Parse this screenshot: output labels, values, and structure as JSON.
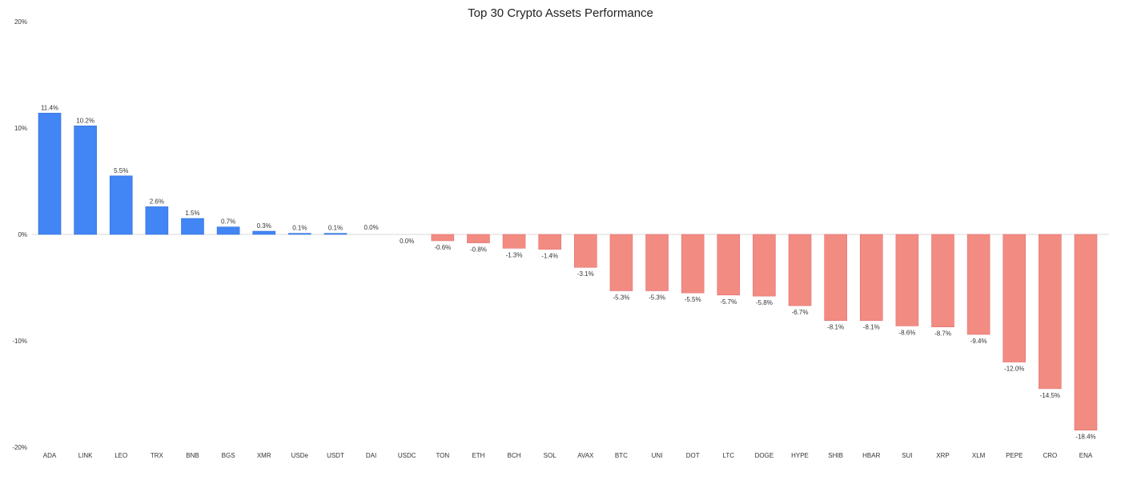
{
  "chart_data": {
    "type": "bar",
    "title": "Top 30 Crypto Assets Performance",
    "xlabel": "",
    "ylabel": "",
    "ylim": [
      -20,
      20
    ],
    "yticks": [
      20,
      10,
      0,
      -10,
      -20
    ],
    "ytick_labels": [
      "20%",
      "10%",
      "0%",
      "-10%",
      "-20%"
    ],
    "grid": false,
    "legend": "none",
    "colors": {
      "positive": "#4285f4",
      "negative": "#f28b82",
      "zero_line": "#d9d9d9"
    },
    "categories": [
      "ADA",
      "LINK",
      "LEO",
      "TRX",
      "BNB",
      "BGS",
      "XMR",
      "USDe",
      "USDT",
      "DAI",
      "USDC",
      "TON",
      "ETH",
      "BCH",
      "SOL",
      "AVAX",
      "BTC",
      "UNI",
      "DOT",
      "LTC",
      "DOGE",
      "HYPE",
      "SHIB",
      "HBAR",
      "SUI",
      "XRP",
      "XLM",
      "PEPE",
      "CRO",
      "ENA"
    ],
    "values": [
      11.4,
      10.2,
      5.5,
      2.6,
      1.5,
      0.7,
      0.3,
      0.1,
      0.1,
      0.0,
      0.0,
      -0.6,
      -0.8,
      -1.3,
      -1.4,
      -3.1,
      -5.3,
      -5.3,
      -5.5,
      -5.7,
      -5.8,
      -6.7,
      -8.1,
      -8.1,
      -8.6,
      -8.7,
      -9.4,
      -12.0,
      -14.5,
      -18.4
    ],
    "data_labels": [
      "11.4%",
      "10.2%",
      "5.5%",
      "2.6%",
      "1.5%",
      "0.7%",
      "0.3%",
      "0.1%",
      "0.1%",
      "0.0%",
      "0.0%",
      "-0.6%",
      "-0.8%",
      "-1.3%",
      "-1.4%",
      "-3.1%",
      "-5.3%",
      "-5.3%",
      "-5.5%",
      "-5.7%",
      "-5.8%",
      "-6.7%",
      "-8.1%",
      "-8.1%",
      "-8.6%",
      "-8.7%",
      "-9.4%",
      "-12.0%",
      "-14.5%",
      "-18.4%"
    ]
  }
}
